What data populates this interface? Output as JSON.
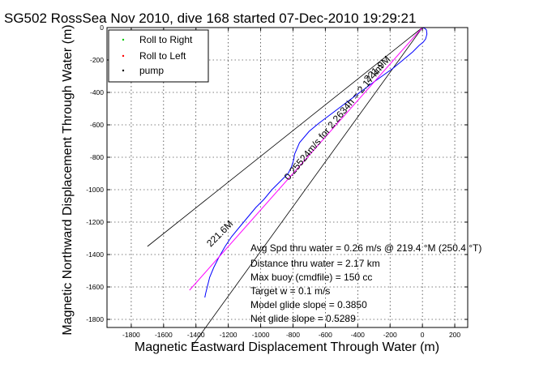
{
  "chart_data": {
    "type": "line",
    "title": "SG502 RossSea Nov 2010, dive 168 started 07-Dec-2010 19:29:21",
    "xlabel": "Magnetic Eastward Displacement Through Water (m)",
    "ylabel": "Magnetic Northward Displacement Through Water (m)",
    "xlim": [
      -1950,
      280
    ],
    "ylim": [
      -1850,
      0
    ],
    "xticks": [
      -1800,
      -1600,
      -1400,
      -1200,
      -1000,
      -800,
      -600,
      -400,
      -200,
      0,
      200
    ],
    "yticks": [
      0,
      -200,
      -400,
      -600,
      -800,
      -1000,
      -1200,
      -1400,
      -1600,
      -1800
    ],
    "grid": true,
    "legend": {
      "placement": "top-left",
      "entries": [
        {
          "name": "Roll to Right",
          "color": "#00cc00",
          "marker": "dot"
        },
        {
          "name": "Roll to Left",
          "color": "#ff0000",
          "marker": "dot"
        },
        {
          "name": "pump",
          "color": "#000000",
          "marker": "dot"
        }
      ]
    },
    "series": [
      {
        "name": "track",
        "color": "#0000ff",
        "points": [
          [
            0,
            0
          ],
          [
            15,
            -5
          ],
          [
            25,
            -15
          ],
          [
            28,
            -40
          ],
          [
            20,
            -70
          ],
          [
            5,
            -90
          ],
          [
            -20,
            -110
          ],
          [
            -60,
            -150
          ],
          [
            -120,
            -200
          ],
          [
            -180,
            -250
          ],
          [
            -250,
            -300
          ],
          [
            -320,
            -350
          ],
          [
            -400,
            -410
          ],
          [
            -480,
            -470
          ],
          [
            -560,
            -530
          ],
          [
            -640,
            -590
          ],
          [
            -700,
            -640
          ],
          [
            -760,
            -710
          ],
          [
            -790,
            -780
          ],
          [
            -795,
            -810
          ],
          [
            -800,
            -830
          ],
          [
            -810,
            -860
          ],
          [
            -830,
            -900
          ],
          [
            -880,
            -950
          ],
          [
            -930,
            -1000
          ],
          [
            -980,
            -1060
          ],
          [
            -1030,
            -1110
          ],
          [
            -1080,
            -1170
          ],
          [
            -1130,
            -1230
          ],
          [
            -1180,
            -1290
          ],
          [
            -1220,
            -1350
          ],
          [
            -1260,
            -1420
          ],
          [
            -1290,
            -1480
          ],
          [
            -1315,
            -1540
          ],
          [
            -1330,
            -1600
          ],
          [
            -1340,
            -1640
          ],
          [
            -1345,
            -1665
          ]
        ]
      },
      {
        "name": "heading",
        "color": "#ff00ff",
        "points": [
          [
            0,
            0
          ],
          [
            -1440,
            -1620
          ]
        ]
      }
    ],
    "reference_lines": [
      {
        "label": "221.6M",
        "points": [
          [
            0,
            0
          ],
          [
            -1700,
            -1350
          ]
        ],
        "color": "#000000"
      },
      {
        "label": "221.9M",
        "points": [
          [
            0,
            0
          ],
          [
            -1420,
            -1960
          ]
        ],
        "color": "#000000"
      }
    ],
    "annotations": {
      "line_labels": [
        "221.9M",
        "221.6M",
        "0.25524m/s for 2.2634h = 2.17 km"
      ],
      "stats": [
        "Avg Spd thru water =  0.26 m/s @ 219.4   °M (250.4 °T)",
        "Distance thru water =  2.17 km",
        "Max buoy (cmdfile) = 150 cc",
        "Target w = 0.1 m/s",
        "Model glide slope = 0.3850",
        "Net glide slope = 0.5289"
      ]
    }
  }
}
